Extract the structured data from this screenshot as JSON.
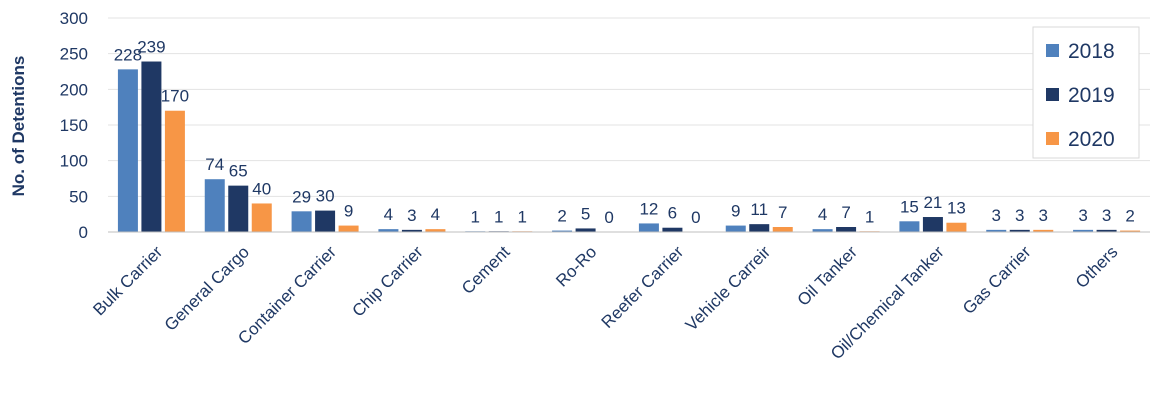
{
  "chart_data": {
    "type": "bar",
    "ylabel": "No. of Detentions",
    "xlabel": "",
    "ylim": [
      0,
      300
    ],
    "yticks": [
      0,
      50,
      100,
      150,
      200,
      250,
      300
    ],
    "grid": true,
    "legend_position": "right",
    "categories": [
      "Bulk Carrier",
      "General Cargo",
      "Container Carrier",
      "Chip Carrier",
      "Cement",
      "Ro-Ro",
      "Reefer Carrier",
      "Vehicle Carreir",
      "Oil Tanker",
      "Oil/Chemical Tanker",
      "Gas Carrier",
      "Others"
    ],
    "series": [
      {
        "name": "2018",
        "color": "#4F81BD",
        "values": [
          228,
          74,
          29,
          4,
          1,
          2,
          12,
          9,
          4,
          15,
          3,
          3
        ]
      },
      {
        "name": "2019",
        "color": "#1F3864",
        "values": [
          239,
          65,
          30,
          3,
          1,
          5,
          6,
          11,
          7,
          21,
          3,
          3
        ]
      },
      {
        "name": "2020",
        "color": "#F79646",
        "values": [
          170,
          40,
          9,
          4,
          1,
          0,
          0,
          7,
          1,
          13,
          3,
          2
        ]
      }
    ]
  }
}
